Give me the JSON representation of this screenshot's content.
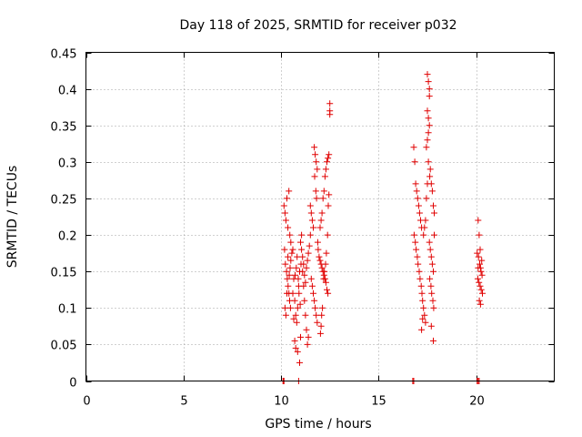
{
  "chart_data": {
    "type": "scatter",
    "title": "Day 118 of 2025, SRMTID for receiver p032",
    "xlabel": "GPS time / hours",
    "ylabel": "SRMTID / TECUs",
    "xlim": [
      0,
      24
    ],
    "ylim": [
      0,
      0.45
    ],
    "xticks": [
      0,
      5,
      10,
      15,
      20
    ],
    "yticks": [
      0,
      0.05,
      0.1,
      0.15,
      0.2,
      0.25,
      0.3,
      0.35,
      0.4,
      0.45
    ],
    "xtick_labels": [
      "0",
      "5",
      "10",
      "15",
      "20"
    ],
    "ytick_labels": [
      "0",
      "0.05",
      "0.1",
      "0.15",
      "0.2",
      "0.25",
      "0.3",
      "0.35",
      "0.4",
      "0.45"
    ],
    "grid": true,
    "marker": "+",
    "marker_color": "#e00000",
    "series": [
      {
        "name": "SRMTID",
        "points": [
          [
            10.1,
            0.0
          ],
          [
            10.12,
            0.0
          ],
          [
            10.15,
            0.0
          ],
          [
            10.9,
            0.0
          ],
          [
            16.75,
            0.0
          ],
          [
            16.8,
            0.0
          ],
          [
            20.05,
            0.0
          ],
          [
            20.1,
            0.0
          ],
          [
            20.15,
            0.0
          ],
          [
            10.15,
            0.24
          ],
          [
            10.2,
            0.23
          ],
          [
            10.25,
            0.22
          ],
          [
            10.3,
            0.25
          ],
          [
            10.35,
            0.21
          ],
          [
            10.4,
            0.26
          ],
          [
            10.45,
            0.2
          ],
          [
            10.5,
            0.19
          ],
          [
            10.18,
            0.18
          ],
          [
            10.22,
            0.16
          ],
          [
            10.28,
            0.15
          ],
          [
            10.32,
            0.14
          ],
          [
            10.36,
            0.13
          ],
          [
            10.4,
            0.12
          ],
          [
            10.44,
            0.11
          ],
          [
            10.48,
            0.1
          ],
          [
            10.2,
            0.1
          ],
          [
            10.25,
            0.09
          ],
          [
            10.3,
            0.12
          ],
          [
            10.35,
            0.17
          ],
          [
            10.42,
            0.145
          ],
          [
            10.46,
            0.155
          ],
          [
            10.5,
            0.165
          ],
          [
            10.55,
            0.175
          ],
          [
            10.6,
            0.18
          ],
          [
            10.65,
            0.14
          ],
          [
            10.6,
            0.12
          ],
          [
            10.7,
            0.11
          ],
          [
            10.75,
            0.09
          ],
          [
            10.8,
            0.08
          ],
          [
            10.85,
            0.1
          ],
          [
            10.9,
            0.13
          ],
          [
            10.95,
            0.15
          ],
          [
            10.7,
            0.055
          ],
          [
            10.75,
            0.045
          ],
          [
            10.85,
            0.04
          ],
          [
            10.95,
            0.025
          ],
          [
            11.0,
            0.06
          ],
          [
            10.65,
            0.085
          ],
          [
            10.72,
            0.145
          ],
          [
            10.78,
            0.155
          ],
          [
            10.82,
            0.17
          ],
          [
            10.88,
            0.14
          ],
          [
            10.92,
            0.12
          ],
          [
            10.98,
            0.105
          ],
          [
            11.02,
            0.16
          ],
          [
            11.05,
            0.18
          ],
          [
            11.1,
            0.15
          ],
          [
            11.15,
            0.13
          ],
          [
            11.2,
            0.11
          ],
          [
            11.25,
            0.09
          ],
          [
            11.3,
            0.07
          ],
          [
            11.35,
            0.05
          ],
          [
            11.4,
            0.06
          ],
          [
            11.0,
            0.19
          ],
          [
            11.05,
            0.2
          ],
          [
            11.1,
            0.17
          ],
          [
            11.15,
            0.16
          ],
          [
            11.2,
            0.145
          ],
          [
            11.25,
            0.135
          ],
          [
            11.3,
            0.155
          ],
          [
            11.35,
            0.165
          ],
          [
            11.4,
            0.175
          ],
          [
            11.45,
            0.185
          ],
          [
            11.5,
            0.2
          ],
          [
            11.55,
            0.14
          ],
          [
            11.6,
            0.13
          ],
          [
            11.65,
            0.12
          ],
          [
            11.7,
            0.11
          ],
          [
            11.75,
            0.1
          ],
          [
            11.8,
            0.09
          ],
          [
            11.85,
            0.08
          ],
          [
            11.5,
            0.24
          ],
          [
            11.55,
            0.23
          ],
          [
            11.6,
            0.22
          ],
          [
            11.65,
            0.21
          ],
          [
            11.7,
            0.32
          ],
          [
            11.75,
            0.31
          ],
          [
            11.8,
            0.3
          ],
          [
            11.85,
            0.29
          ],
          [
            11.72,
            0.28
          ],
          [
            11.78,
            0.26
          ],
          [
            11.82,
            0.25
          ],
          [
            11.88,
            0.19
          ],
          [
            11.9,
            0.18
          ],
          [
            11.95,
            0.17
          ],
          [
            12.0,
            0.165
          ],
          [
            12.05,
            0.16
          ],
          [
            12.1,
            0.155
          ],
          [
            12.15,
            0.15
          ],
          [
            12.2,
            0.145
          ],
          [
            12.25,
            0.14
          ],
          [
            12.3,
            0.135
          ],
          [
            12.35,
            0.125
          ],
          [
            12.4,
            0.12
          ],
          [
            12.0,
            0.21
          ],
          [
            12.05,
            0.22
          ],
          [
            12.1,
            0.23
          ],
          [
            12.15,
            0.25
          ],
          [
            12.2,
            0.26
          ],
          [
            12.25,
            0.28
          ],
          [
            12.3,
            0.29
          ],
          [
            12.35,
            0.3
          ],
          [
            12.4,
            0.305
          ],
          [
            12.45,
            0.31
          ],
          [
            12.5,
            0.38
          ],
          [
            12.5,
            0.37
          ],
          [
            12.5,
            0.365
          ],
          [
            12.45,
            0.255
          ],
          [
            12.42,
            0.24
          ],
          [
            12.38,
            0.2
          ],
          [
            12.32,
            0.175
          ],
          [
            12.28,
            0.16
          ],
          [
            12.22,
            0.15
          ],
          [
            12.18,
            0.14
          ],
          [
            12.12,
            0.1
          ],
          [
            12.08,
            0.09
          ],
          [
            12.05,
            0.075
          ],
          [
            12.02,
            0.065
          ],
          [
            16.8,
            0.32
          ],
          [
            16.85,
            0.3
          ],
          [
            16.9,
            0.27
          ],
          [
            16.95,
            0.26
          ],
          [
            17.0,
            0.25
          ],
          [
            17.05,
            0.24
          ],
          [
            17.1,
            0.23
          ],
          [
            17.15,
            0.22
          ],
          [
            17.2,
            0.21
          ],
          [
            16.82,
            0.2
          ],
          [
            16.88,
            0.19
          ],
          [
            16.92,
            0.18
          ],
          [
            16.98,
            0.17
          ],
          [
            17.02,
            0.16
          ],
          [
            17.08,
            0.15
          ],
          [
            17.12,
            0.14
          ],
          [
            17.18,
            0.13
          ],
          [
            17.22,
            0.12
          ],
          [
            17.25,
            0.11
          ],
          [
            17.3,
            0.1
          ],
          [
            17.35,
            0.09
          ],
          [
            17.4,
            0.08
          ],
          [
            17.2,
            0.07
          ],
          [
            17.25,
            0.085
          ],
          [
            17.3,
            0.2
          ],
          [
            17.35,
            0.21
          ],
          [
            17.4,
            0.22
          ],
          [
            17.45,
            0.25
          ],
          [
            17.5,
            0.27
          ],
          [
            17.55,
            0.3
          ],
          [
            17.45,
            0.32
          ],
          [
            17.5,
            0.33
          ],
          [
            17.55,
            0.34
          ],
          [
            17.5,
            0.37
          ],
          [
            17.55,
            0.36
          ],
          [
            17.6,
            0.35
          ],
          [
            17.5,
            0.42
          ],
          [
            17.55,
            0.41
          ],
          [
            17.6,
            0.4
          ],
          [
            17.6,
            0.39
          ],
          [
            17.62,
            0.28
          ],
          [
            17.65,
            0.29
          ],
          [
            17.7,
            0.27
          ],
          [
            17.75,
            0.26
          ],
          [
            17.8,
            0.24
          ],
          [
            17.85,
            0.23
          ],
          [
            17.6,
            0.19
          ],
          [
            17.65,
            0.18
          ],
          [
            17.7,
            0.17
          ],
          [
            17.75,
            0.16
          ],
          [
            17.8,
            0.15
          ],
          [
            17.85,
            0.2
          ],
          [
            17.62,
            0.14
          ],
          [
            17.68,
            0.13
          ],
          [
            17.72,
            0.12
          ],
          [
            17.78,
            0.11
          ],
          [
            17.82,
            0.1
          ],
          [
            17.7,
            0.075
          ],
          [
            17.8,
            0.055
          ],
          [
            20.1,
            0.22
          ],
          [
            20.15,
            0.2
          ],
          [
            20.2,
            0.18
          ],
          [
            20.12,
            0.17
          ],
          [
            20.18,
            0.16
          ],
          [
            20.22,
            0.155
          ],
          [
            20.25,
            0.15
          ],
          [
            20.3,
            0.145
          ],
          [
            20.08,
            0.14
          ],
          [
            20.14,
            0.135
          ],
          [
            20.2,
            0.13
          ],
          [
            20.26,
            0.125
          ],
          [
            20.32,
            0.12
          ],
          [
            20.16,
            0.11
          ],
          [
            20.22,
            0.105
          ],
          [
            20.05,
            0.175
          ],
          [
            20.28,
            0.165
          ],
          [
            20.1,
            0.155
          ]
        ]
      }
    ]
  }
}
